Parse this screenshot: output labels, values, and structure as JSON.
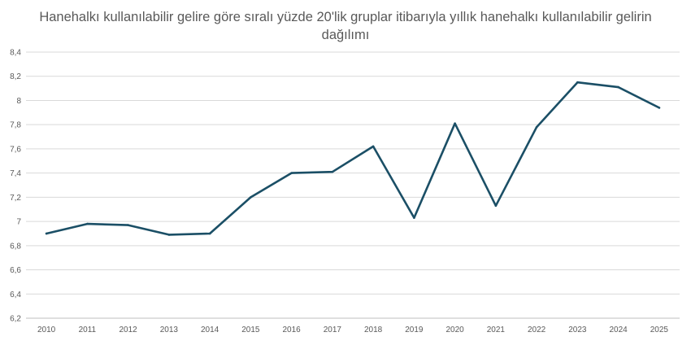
{
  "chart_data": {
    "type": "line",
    "title_lines": [
      "Hanehalkı kullanılabilir gelire göre sıralı yüzde 20'lik gruplar itibarıyla yıllık hanehalkı kullanılabilir gelirin",
      "dağılımı"
    ],
    "xlabel": "",
    "ylabel": "",
    "x": [
      "2010",
      "2011",
      "2012",
      "2013",
      "2014",
      "2015",
      "2016",
      "2017",
      "2018",
      "2019",
      "2020",
      "2021",
      "2022",
      "2023",
      "2024",
      "2025"
    ],
    "series": [
      {
        "values": [
          6.9,
          6.98,
          6.97,
          6.89,
          6.9,
          7.2,
          7.4,
          7.41,
          7.62,
          7.03,
          7.81,
          7.13,
          7.78,
          8.15,
          8.11,
          7.94
        ],
        "color": "#1b4f66"
      }
    ],
    "ylim": [
      6.2,
      8.4
    ],
    "yticks": [
      "6,2",
      "6,4",
      "6,6",
      "6,8",
      "7",
      "7,2",
      "7,4",
      "7,6",
      "7,8",
      "8",
      "8,2",
      "8,4"
    ],
    "grid": true,
    "legend": "none"
  }
}
